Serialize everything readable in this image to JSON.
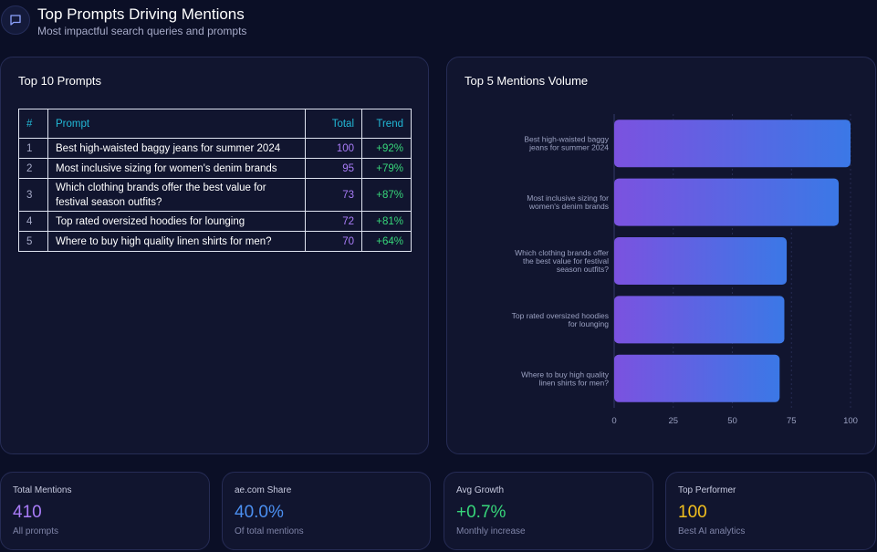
{
  "header": {
    "title": "Top Prompts Driving Mentions",
    "subtitle": "Most impactful search queries and prompts",
    "icon": "chat-bubble-icon"
  },
  "prompts_card": {
    "title": "Top 10 Prompts",
    "columns": [
      "#",
      "Prompt",
      "Total",
      "Trend"
    ],
    "rows": [
      {
        "num": "1",
        "prompt": "Best high-waisted baggy jeans for summer 2024",
        "total": "100",
        "trend": "+92%"
      },
      {
        "num": "2",
        "prompt": "Most inclusive sizing for women's denim brands",
        "total": "95",
        "trend": "+79%"
      },
      {
        "num": "3",
        "prompt": "Which clothing brands offer the best value for festival season outfits?",
        "total": "73",
        "trend": "+87%"
      },
      {
        "num": "4",
        "prompt": "Top rated oversized hoodies for lounging",
        "total": "72",
        "trend": "+81%"
      },
      {
        "num": "5",
        "prompt": "Where to buy high quality linen shirts for men?",
        "total": "70",
        "trend": "+64%"
      }
    ]
  },
  "chart_card": {
    "title": "Top 5 Mentions Volume"
  },
  "chart_data": {
    "type": "bar",
    "orientation": "horizontal",
    "categories": [
      [
        "Best high-waisted baggy",
        "jeans for summer 2024"
      ],
      [
        "Most inclusive sizing for",
        "women's denim brands"
      ],
      [
        "Which clothing brands offer",
        "the best value for festival",
        "season outfits?"
      ],
      [
        "Top rated oversized hoodies",
        "for lounging"
      ],
      [
        "Where to buy high quality",
        "linen shirts for men?"
      ]
    ],
    "values": [
      100,
      95,
      73,
      72,
      70
    ],
    "xlim": [
      0,
      100
    ],
    "xticks": [
      0,
      25,
      50,
      75,
      100
    ],
    "grid": true,
    "bar_gradient": [
      "#7b52e0",
      "#3b78e6"
    ]
  },
  "stats": [
    {
      "label": "Total Mentions",
      "value": "410",
      "sub": "All prompts",
      "color": "#a97cf8"
    },
    {
      "label": "ae.com Share",
      "value": "40.0%",
      "sub": "Of total mentions",
      "color": "#4b8ff0"
    },
    {
      "label": "Avg Growth",
      "value": "+0.7%",
      "sub": "Monthly increase",
      "color": "#37d67a"
    },
    {
      "label": "Top Performer",
      "value": "100",
      "sub": "Best AI analytics",
      "color": "#f2c01e"
    }
  ]
}
